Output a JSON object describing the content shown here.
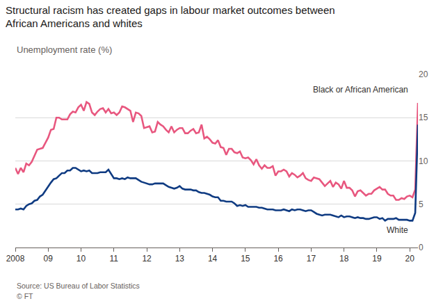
{
  "chart_data": {
    "type": "line",
    "title": "Structural racism has created gaps in labour market outcomes between African Americans and whites",
    "subtitle": "Unemployment rate (%)",
    "annotations": [
      "Source: US Bureau of Labor Statistics",
      "© FT"
    ],
    "categories": [
      "2008",
      null,
      null,
      null,
      null,
      null,
      null,
      null,
      null,
      null,
      null,
      null,
      "09",
      null,
      null,
      null,
      null,
      null,
      null,
      null,
      null,
      null,
      null,
      null,
      "10",
      null,
      null,
      null,
      null,
      null,
      null,
      null,
      null,
      null,
      null,
      null,
      "11",
      null,
      null,
      null,
      null,
      null,
      null,
      null,
      null,
      null,
      null,
      null,
      "12",
      null,
      null,
      null,
      null,
      null,
      null,
      null,
      null,
      null,
      null,
      null,
      "13",
      null,
      null,
      null,
      null,
      null,
      null,
      null,
      null,
      null,
      null,
      null,
      "14",
      null,
      null,
      null,
      null,
      null,
      null,
      null,
      null,
      null,
      null,
      null,
      "15",
      null,
      null,
      null,
      null,
      null,
      null,
      null,
      null,
      null,
      null,
      null,
      "16",
      null,
      null,
      null,
      null,
      null,
      null,
      null,
      null,
      null,
      null,
      null,
      "17",
      null,
      null,
      null,
      null,
      null,
      null,
      null,
      null,
      null,
      null,
      null,
      "18",
      null,
      null,
      null,
      null,
      null,
      null,
      null,
      null,
      null,
      null,
      null,
      "19",
      null,
      null,
      null,
      null,
      null,
      null,
      null,
      null,
      null,
      null,
      null,
      "20",
      null,
      null,
      null
    ],
    "series": [
      {
        "name": "Black or African American",
        "color": "#e8577f",
        "values": [
          9.2,
          8.5,
          9.2,
          8.7,
          9.7,
          9.5,
          9.9,
          10.6,
          11.3,
          11.4,
          11.5,
          12.1,
          12.7,
          13.6,
          13.7,
          15.0,
          15.0,
          14.8,
          14.8,
          14.8,
          15.4,
          15.7,
          15.6,
          16.2,
          16.5,
          15.8,
          16.8,
          16.6,
          15.6,
          15.3,
          15.7,
          16.0,
          16.1,
          15.6,
          16.0,
          15.5,
          15.6,
          15.3,
          15.6,
          16.3,
          16.2,
          16.0,
          15.8,
          14.5,
          15.6,
          15.5,
          15.2,
          13.8,
          13.9,
          14.0,
          13.3,
          13.4,
          14.5,
          14.2,
          14.0,
          13.6,
          13.3,
          14.0,
          13.3,
          13.6,
          13.8,
          13.8,
          13.2,
          13.2,
          13.5,
          13.7,
          13.2,
          13.3,
          14.2,
          12.6,
          12.8,
          12.5,
          12.1,
          12.0,
          12.4,
          11.6,
          11.5,
          10.7,
          11.4,
          11.4,
          11.0,
          10.9,
          11.1,
          10.4,
          10.3,
          10.4,
          10.1,
          9.6,
          10.2,
          9.5,
          9.1,
          9.5,
          9.2,
          9.2,
          9.4,
          8.3,
          8.8,
          8.8,
          9.0,
          8.8,
          8.2,
          8.6,
          8.4,
          8.1,
          8.3,
          8.6,
          8.0,
          7.8,
          7.7,
          8.1,
          8.0,
          7.9,
          7.5,
          7.1,
          7.4,
          7.7,
          7.0,
          7.5,
          7.3,
          6.8,
          7.7,
          6.9,
          6.9,
          6.6,
          5.9,
          6.5,
          6.6,
          6.3,
          6.0,
          6.2,
          6.2,
          6.6,
          6.8,
          7.0,
          6.7,
          6.7,
          6.2,
          6.0,
          6.0,
          5.5,
          5.5,
          5.7,
          5.6,
          5.9,
          6.0,
          5.8,
          6.7,
          16.7
        ]
      },
      {
        "name": "White",
        "color": "#0f3b82",
        "values": [
          4.4,
          4.4,
          4.5,
          4.4,
          4.8,
          5.0,
          5.1,
          5.4,
          5.5,
          5.9,
          6.1,
          6.6,
          7.0,
          7.5,
          7.9,
          8.0,
          8.3,
          8.6,
          8.6,
          8.9,
          8.9,
          9.2,
          9.2,
          9.0,
          8.8,
          8.9,
          8.8,
          8.9,
          8.6,
          8.6,
          8.6,
          8.7,
          8.7,
          8.7,
          9.0,
          8.5,
          8.0,
          8.0,
          7.9,
          8.0,
          7.9,
          8.1,
          8.0,
          8.0,
          8.0,
          7.8,
          7.6,
          7.5,
          7.4,
          7.3,
          7.3,
          7.4,
          7.4,
          7.4,
          7.4,
          7.2,
          7.0,
          6.9,
          6.8,
          6.9,
          7.1,
          6.8,
          6.7,
          6.7,
          6.7,
          6.6,
          6.6,
          6.4,
          6.3,
          6.3,
          6.2,
          6.1,
          5.9,
          5.8,
          5.8,
          5.4,
          5.4,
          5.3,
          5.3,
          5.3,
          5.1,
          4.8,
          4.9,
          4.8,
          4.9,
          4.7,
          4.7,
          4.7,
          4.7,
          4.6,
          4.6,
          4.5,
          4.4,
          4.4,
          4.4,
          4.3,
          4.3,
          4.3,
          4.4,
          4.3,
          4.2,
          4.4,
          4.3,
          4.4,
          4.4,
          4.3,
          4.2,
          4.3,
          4.3,
          4.1,
          3.9,
          3.8,
          3.7,
          3.8,
          3.8,
          3.8,
          3.7,
          3.6,
          3.5,
          3.7,
          3.5,
          3.6,
          3.6,
          3.5,
          3.4,
          3.5,
          3.4,
          3.4,
          3.3,
          3.3,
          3.4,
          3.5,
          3.5,
          3.3,
          3.4,
          3.1,
          3.3,
          3.3,
          3.3,
          3.4,
          3.2,
          3.2,
          3.2,
          3.2,
          3.1,
          3.1,
          4.0,
          14.2
        ]
      }
    ],
    "ylim": [
      0,
      20
    ],
    "yticks": [
      0,
      5,
      10,
      15,
      20
    ],
    "grid": true
  }
}
